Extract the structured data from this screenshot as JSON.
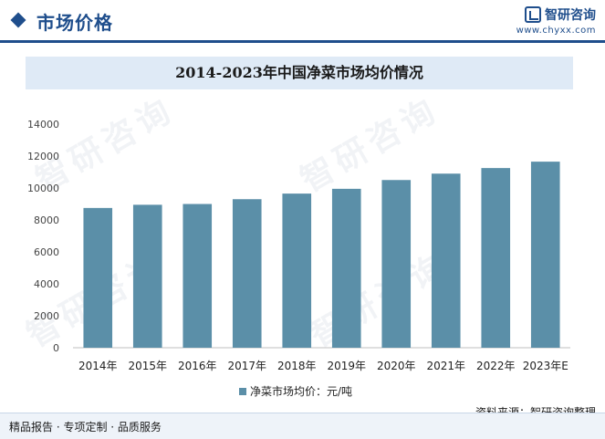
{
  "header": {
    "title": "市场价格",
    "brand_name": "智研咨询",
    "brand_url": "www.chyxx.com",
    "accent_color": "#1f4e8c"
  },
  "footer": {
    "left_text": "精品报告 · 专项定制 · 品质服务",
    "source_text": "资料来源：智研咨询整理"
  },
  "watermark_text": "智研咨询",
  "chart_data": {
    "type": "bar",
    "title": "2014-2023年中国净菜市场均价情况",
    "categories": [
      "2014年",
      "2015年",
      "2016年",
      "2017年",
      "2018年",
      "2019年",
      "2020年",
      "2021年",
      "2022年",
      "2023年E"
    ],
    "series": [
      {
        "name": "净菜市场均价：元/吨",
        "values": [
          8750,
          8950,
          9000,
          9300,
          9650,
          9950,
          10500,
          10900,
          11250,
          11650
        ],
        "color": "#5b8fa8"
      }
    ],
    "ylim": [
      0,
      14000
    ],
    "yticks": [
      0,
      2000,
      4000,
      6000,
      8000,
      10000,
      12000,
      14000
    ],
    "grid": false,
    "legend_position": "bottom-center"
  }
}
